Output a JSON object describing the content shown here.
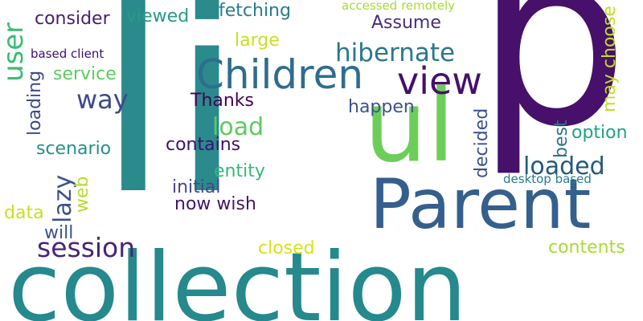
{
  "words": {
    "li": {
      "text": "li",
      "color": "#2a8a8c"
    },
    "p": {
      "text": "p",
      "color": "#46106b"
    },
    "collection": {
      "text": "collection",
      "color": "#25898d"
    },
    "parent": {
      "text": "Parent",
      "color": "#355f8d"
    },
    "ul": {
      "text": "ul",
      "color": "#6cce59"
    },
    "children": {
      "text": "Children",
      "color": "#2f6d8e"
    },
    "view": {
      "text": "view",
      "color": "#46106b"
    },
    "hibernate": {
      "text": "hibernate",
      "color": "#2a788e"
    },
    "session": {
      "text": "session",
      "color": "#482475"
    },
    "way": {
      "text": "way",
      "color": "#3e4a89"
    },
    "load": {
      "text": "load",
      "color": "#5ec962"
    },
    "loaded": {
      "text": "loaded",
      "color": "#25587e"
    },
    "user": {
      "text": "user",
      "color": "#3bbb75"
    },
    "consider": {
      "text": "consider",
      "color": "#481e6f"
    },
    "viewed": {
      "text": "viewed",
      "color": "#2a9a86"
    },
    "fetching": {
      "text": "fetching",
      "color": "#287c8e"
    },
    "accessed_remotely": {
      "text": "accessed remotely",
      "color": "#a8db34"
    },
    "assume": {
      "text": "Assume",
      "color": "#472d7b"
    },
    "large": {
      "text": "large",
      "color": "#c8e020"
    },
    "based_client": {
      "text": "based client",
      "color": "#3b0f70"
    },
    "service": {
      "text": "service",
      "color": "#5ec962"
    },
    "thanks": {
      "text": "Thanks",
      "color": "#440154"
    },
    "happen": {
      "text": "happen",
      "color": "#3b528b"
    },
    "may_choose": {
      "text": "may choose",
      "color": "#c2df23"
    },
    "loading": {
      "text": "loading",
      "color": "#3e4989"
    },
    "scenario": {
      "text": "scenario",
      "color": "#21918c"
    },
    "contains": {
      "text": "contains",
      "color": "#3f0f72"
    },
    "option": {
      "text": "option",
      "color": "#1fa187"
    },
    "best": {
      "text": "best",
      "color": "#2c728e"
    },
    "decided": {
      "text": "decided",
      "color": "#3b528b"
    },
    "lazy": {
      "text": "lazy",
      "color": "#3b528b"
    },
    "entity": {
      "text": "entity",
      "color": "#35b779"
    },
    "initial": {
      "text": "initial",
      "color": "#3e4989"
    },
    "web": {
      "text": "web",
      "color": "#b5de2b"
    },
    "desktop_based": {
      "text": "desktop based",
      "color": "#287c8e"
    },
    "data": {
      "text": "data",
      "color": "#c8e020"
    },
    "now_wish": {
      "text": "now wish",
      "color": "#481467"
    },
    "will": {
      "text": "will",
      "color": "#3b528b"
    },
    "closed": {
      "text": "closed",
      "color": "#d8e219"
    },
    "contents": {
      "text": "contents",
      "color": "#a8db34"
    }
  }
}
